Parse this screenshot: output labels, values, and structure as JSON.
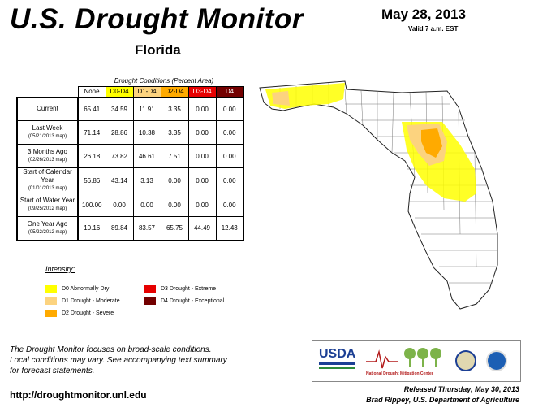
{
  "header": {
    "title": "U.S. Drought Monitor",
    "region": "Florida",
    "date": "May 28, 2013",
    "valid": "Valid 7 a.m. EST"
  },
  "table": {
    "caption": "Drought Conditions (Percent Area)",
    "columns": [
      "None",
      "D0-D4",
      "D1-D4",
      "D2-D4",
      "D3-D4",
      "D4"
    ],
    "rows": [
      {
        "label": "Current",
        "sub": "",
        "values": [
          "65.41",
          "34.59",
          "11.91",
          "3.35",
          "0.00",
          "0.00"
        ]
      },
      {
        "label": "Last Week",
        "sub": "(05/21/2013 map)",
        "values": [
          "71.14",
          "28.86",
          "10.38",
          "3.35",
          "0.00",
          "0.00"
        ]
      },
      {
        "label": "3 Months Ago",
        "sub": "(02/26/2013 map)",
        "values": [
          "26.18",
          "73.82",
          "46.61",
          "7.51",
          "0.00",
          "0.00"
        ]
      },
      {
        "label": "Start of Calendar Year",
        "sub": "(01/01/2013 map)",
        "values": [
          "56.86",
          "43.14",
          "3.13",
          "0.00",
          "0.00",
          "0.00"
        ]
      },
      {
        "label": "Start of Water Year",
        "sub": "(09/25/2012 map)",
        "values": [
          "100.00",
          "0.00",
          "0.00",
          "0.00",
          "0.00",
          "0.00"
        ]
      },
      {
        "label": "One Year Ago",
        "sub": "(05/22/2012 map)",
        "values": [
          "10.16",
          "89.84",
          "83.57",
          "65.75",
          "44.49",
          "12.43"
        ]
      }
    ]
  },
  "legend": {
    "title": "Intensity:",
    "items": [
      {
        "label": "D0 Abnormally Dry",
        "color": "#ffff00"
      },
      {
        "label": "D1 Drought - Moderate",
        "color": "#fcd37f"
      },
      {
        "label": "D2 Drought - Severe",
        "color": "#ffaa00"
      },
      {
        "label": "D3 Drought - Extreme",
        "color": "#e60000"
      },
      {
        "label": "D4 Drought - Exceptional",
        "color": "#730000"
      }
    ]
  },
  "footer": {
    "note_lines": [
      "The Drought Monitor focuses on broad-scale conditions.",
      "Local conditions may vary. See accompanying text summary",
      "for forecast statements."
    ],
    "url": "http://droughtmonitor.unl.edu",
    "released": "Released Thursday, May 30, 2013",
    "author": "Brad Rippey, U.S. Department of Agriculture"
  },
  "logos": {
    "usda": "USDA",
    "ndmc": "National Drought Mitigation Center"
  }
}
